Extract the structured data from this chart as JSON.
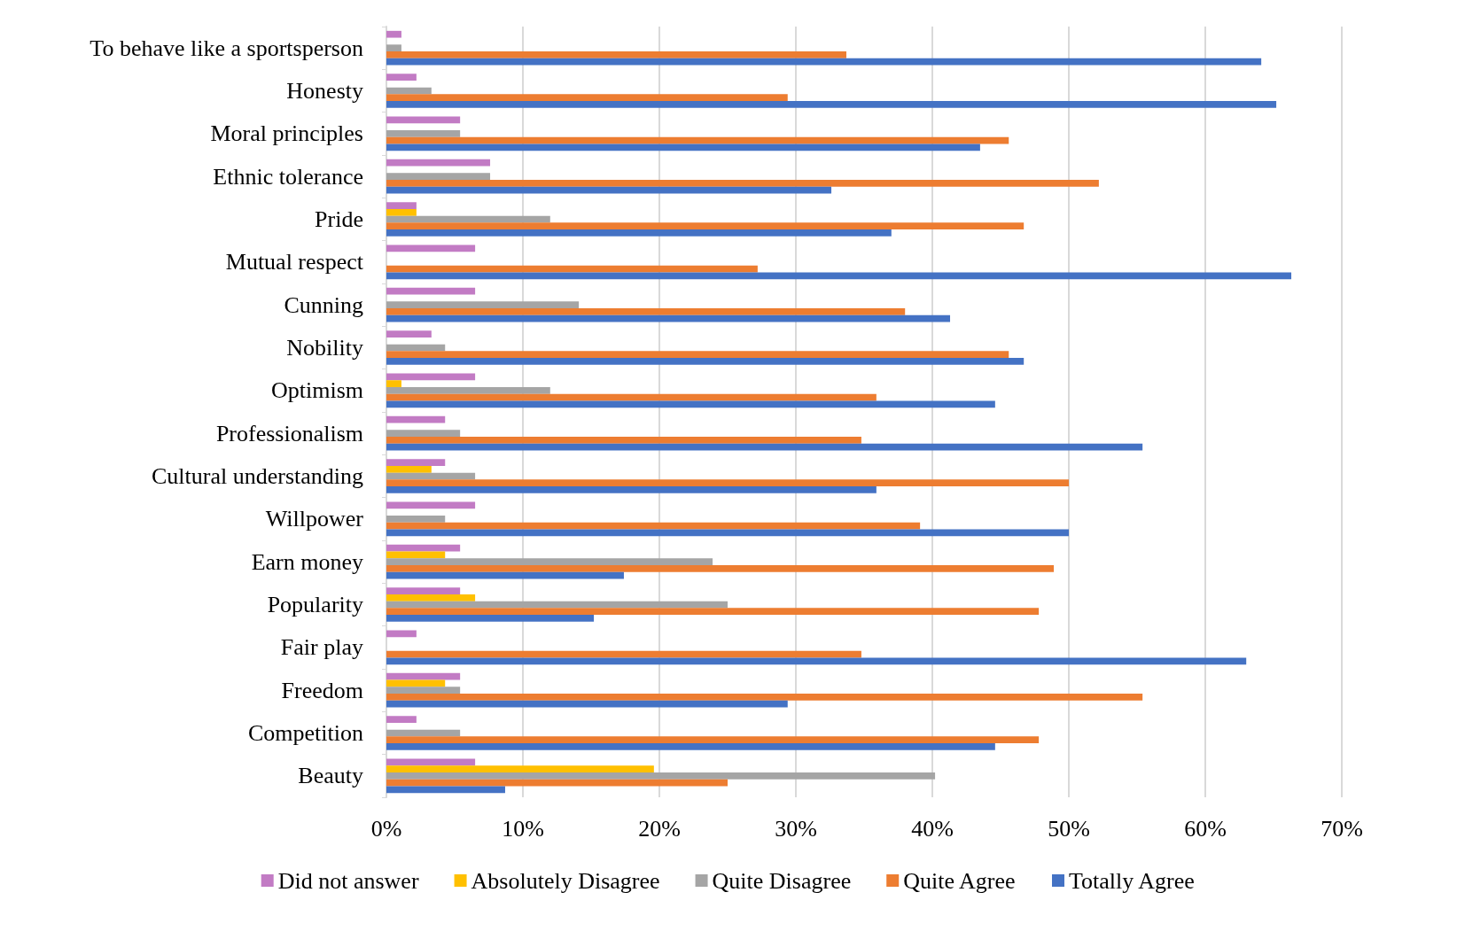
{
  "chart_data": {
    "type": "bar",
    "orientation": "horizontal",
    "categories": [
      "To behave like a sportsperson",
      "Honesty",
      "Moral principles",
      "Ethnic tolerance",
      "Pride",
      "Mutual respect",
      "Cunning",
      "Nobility",
      "Optimism",
      "Professionalism",
      "Cultural understanding",
      "Willpower",
      "Earn money",
      "Popularity",
      "Fair play",
      "Freedom",
      "Competition",
      "Beauty"
    ],
    "series": [
      {
        "name": "Did not answer",
        "color": "#c27bc4",
        "values": [
          1.1,
          2.2,
          5.4,
          7.6,
          2.2,
          6.5,
          6.5,
          3.3,
          6.5,
          4.3,
          4.3,
          6.5,
          5.4,
          5.4,
          2.2,
          5.4,
          2.2,
          6.5
        ]
      },
      {
        "name": "Absolutely Disagree",
        "color": "#ffc000",
        "values": [
          0,
          0,
          0,
          0,
          2.2,
          0,
          0,
          0,
          1.1,
          0,
          3.3,
          0,
          4.3,
          6.5,
          0,
          4.3,
          0,
          19.6
        ]
      },
      {
        "name": "Quite Disagree",
        "color": "#a5a5a5",
        "values": [
          1.1,
          3.3,
          5.4,
          7.6,
          12,
          0,
          14.1,
          4.3,
          12,
          5.4,
          6.5,
          4.3,
          23.9,
          25,
          0,
          5.4,
          5.4,
          40.2
        ]
      },
      {
        "name": "Quite Agree",
        "color": "#ed7d31",
        "values": [
          33.7,
          29.4,
          45.6,
          52.2,
          46.7,
          27.2,
          38,
          45.6,
          35.9,
          34.8,
          50,
          39.1,
          48.9,
          47.8,
          34.8,
          55.4,
          47.8,
          25
        ]
      },
      {
        "name": "Totally Agree",
        "color": "#4472c4",
        "values": [
          64.1,
          65.2,
          43.5,
          32.6,
          37,
          66.3,
          41.3,
          46.7,
          44.6,
          55.4,
          35.9,
          50,
          17.4,
          15.2,
          63,
          29.4,
          44.6,
          8.7
        ]
      }
    ],
    "xlim": [
      0,
      70
    ],
    "xticks": [
      {
        "value": 0,
        "label": "0%"
      },
      {
        "value": 10,
        "label": "10%"
      },
      {
        "value": 20,
        "label": "20%"
      },
      {
        "value": 30,
        "label": "30%"
      },
      {
        "value": 40,
        "label": "40%"
      },
      {
        "value": 50,
        "label": "50%"
      },
      {
        "value": 60,
        "label": "60%"
      },
      {
        "value": 70,
        "label": "70%"
      }
    ],
    "grid": "x",
    "legend": "bottom"
  }
}
